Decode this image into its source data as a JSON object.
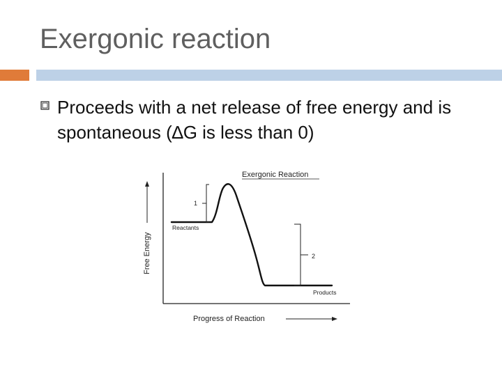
{
  "slide": {
    "title": "Exergonic reaction",
    "bullet_text": "Proceeds with a net release of free energy and is spontaneous (∆G is less than 0)",
    "bullet_icon": "hollow-square-bullet-icon",
    "colors": {
      "accent": "#e07b39",
      "rule": "#bdd1e7",
      "title": "#5f5f5f"
    }
  },
  "diagram": {
    "title": "Exergonic Reaction",
    "y_axis_label": "Free Energy",
    "x_axis_label": "Progress of Reaction",
    "reactants_label": "Reactants",
    "products_label": "Products",
    "bracket_1_label": "1",
    "bracket_2_label": "2"
  }
}
